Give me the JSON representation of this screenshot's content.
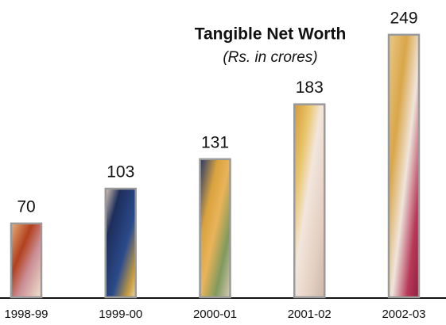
{
  "chart_data": {
    "type": "bar",
    "title": "Tangible Net Worth",
    "subtitle": "(Rs. in crores)",
    "categories": [
      "1998-99",
      "1999-00",
      "2000-01",
      "2001-02",
      "2002-03"
    ],
    "values": [
      70,
      103,
      131,
      183,
      249
    ]
  }
}
